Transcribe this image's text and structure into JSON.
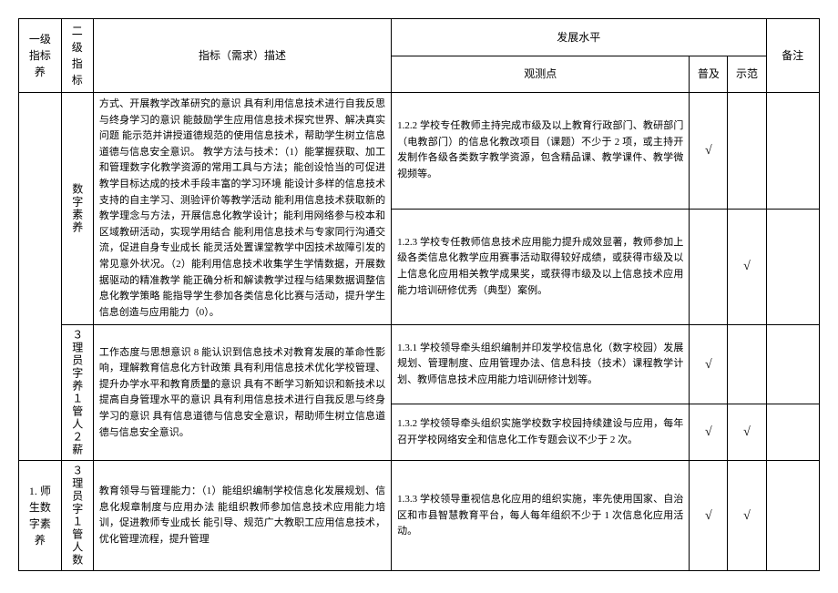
{
  "headers": {
    "lvl1": "一级指标养",
    "lvl2": "二级指标",
    "desc": "指标（需求）描述",
    "dev_level": "发展水平",
    "obs": "观测点",
    "pj": "普及",
    "sf": "示范",
    "bz": "备注"
  },
  "col2_labels": {
    "digital_literacy": "数字素养",
    "admin_training": "３理员字养１管人２薪",
    "admin_num": "３理员字１管人数"
  },
  "col1_labels": {
    "teacher_digital": "1. 师生数字素养"
  },
  "rows": {
    "r1": {
      "desc": "方式、开展教学改革研究的意识 具有利用信息技术进行自我反思与终身学习的意识 能鼓励学生应用信息技术探究世界、解决真实问题 能示范并讲授道德规范的使用信息技术，帮助学生树立信息道德与信息安全意识。\n教学方法与技术：（1）能掌握获取、加工和管理数字化教学资源的常用工具与方法；能创设恰当的可促进教学目标达成的技术手段丰富的学习环境 能设计多样的信息技术支持的自主学习、测验评价等教学活动 能利用信息技术获取新的教学理念与方法，开展信息化教学设计；能利用网络参与校本和区域教研活动，实现学用结合 能利用信息技术与专家同行沟通交流，促进自身专业成长 能灵活处置课堂教学中因技术故障引发的常见意外状况。（2）能利用信息技术收集学生学情数据，开展数据驱动的精准教学 能正确分析和解读教学过程与结果数据调整信息化教学策略 能指导学生参加各类信息化比赛与活动，提升学生信息创造与应用能力（0）。",
      "obs": "1.2.2 学校专任教师主持完成市级及以上教育行政部门、教研部门（电教部门）的信息化教改项目（课题）不少于 2 项，或主持开发制作各级各类数字教学资源，包含精品课、教学课件、教学微视频等。",
      "pj": "√",
      "sf": ""
    },
    "r2": {
      "obs": "1.2.3 学校专任教师信息技术应用能力提升成效显著，教师参加上级各类信息化教学应用赛事活动取得较好成绩，或获得市级及以上信息化应用相关教学成果奖，或获得市级及以上信息技术应用能力培训研修优秀（典型）案例。",
      "pj": "",
      "sf": "√"
    },
    "r3": {
      "desc": "工作态度与思想意识 8 能认识到信息技术对教育发展的革命性影响，理解教育信息化方针政策 具有利用信息技术优化学校管理、提升办学水平和教育质量的意识 具有不断学习新知识和新技术以提高自身管理水平的意识 具有利用信息技术进行自我反思与终身学习的意识 具有信息道德与信息安全意识，帮助师生树立信息道德与信息安全意识。",
      "obs": "1.3.1 学校领导牵头组织编制并印发学校信息化（数字校园）发展规划、管理制度、应用管理办法、信息科技（技术）课程教学计划、教师信息技术应用能力培训研修计划等。",
      "pj": "√",
      "sf": ""
    },
    "r4": {
      "obs": "1.3.2 学校领导牵头组织实施学校数字校园持续建设与应用，每年召开学校网络安全和信息化工作专题会议不少于 2 次。",
      "pj": "√",
      "sf": "√"
    },
    "r5": {
      "desc": "教育领导与管理能力：（1）能组织编制学校信息化发展规划、信息化规章制度与应用办法 能组织教师参加信息技术应用能力培训，促进教师专业成长 能引导、规范广大教职工应用信息技术，优化管理流程，提升管理",
      "obs": "1.3.3 学校领导重视信息化应用的组织实施，率先使用国家、自治区和市县智慧教育平台，每人每年组织不少于 1 次信息化应用活动。",
      "pj": "√",
      "sf": "√"
    }
  },
  "style": {
    "font_size_base": 12,
    "font_size_cell": 11,
    "border_color": "#000000",
    "background": "#ffffff",
    "text_color": "#000000",
    "check_mark": "√"
  }
}
